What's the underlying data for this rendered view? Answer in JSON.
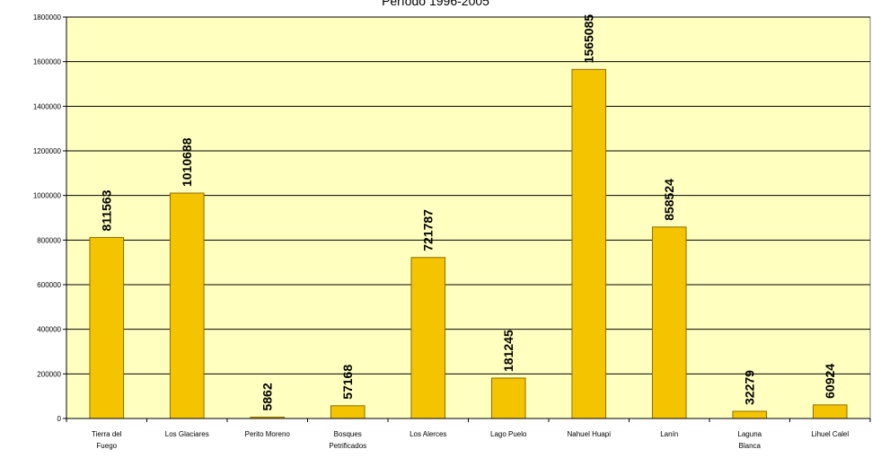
{
  "chart_data": {
    "type": "bar",
    "title": "Período 1996-2005",
    "categories": [
      [
        "Tierra del",
        "Fuego"
      ],
      [
        "Los Glaciares"
      ],
      [
        "Perito Moreno"
      ],
      [
        "Bosques",
        "Petrificados"
      ],
      [
        "Los Alerces"
      ],
      [
        "Lago Puelo"
      ],
      [
        "Nahuel Huapi"
      ],
      [
        "Lanín"
      ],
      [
        "Laguna",
        "Blanca"
      ],
      [
        "Lihuel Calel"
      ]
    ],
    "values": [
      811563,
      1010688,
      5862,
      57168,
      721787,
      181245,
      1565085,
      858524,
      32279,
      60924
    ],
    "ylim": [
      0,
      1800000
    ],
    "yticks": [
      0,
      200000,
      400000,
      600000,
      800000,
      1000000,
      1200000,
      1400000,
      1600000,
      1800000
    ],
    "grid": true,
    "legend": "none",
    "colors": {
      "plot_background": "#FFFFC0",
      "bar_fill": "#F5C400",
      "bar_stroke": "#8C6D00",
      "gridline": "#000000"
    }
  }
}
